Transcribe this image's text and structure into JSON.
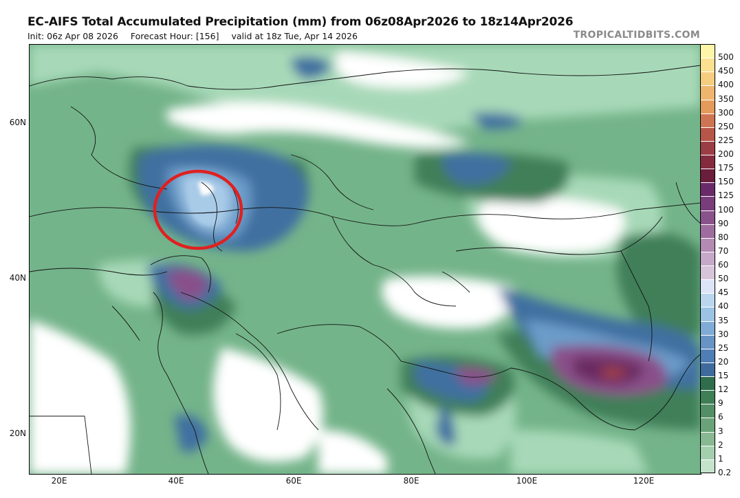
{
  "header": {
    "title": "EC-AIFS Total Accumulated Precipitation (mm) from 06z08Apr2026 to 18z14Apr2026",
    "init": "Init: 06z Apr 08 2026",
    "forecast_hour": "Forecast Hour: [156]",
    "valid": "valid at 18z Tue, Apr 14 2026",
    "brand": "TROPICALTIDBITS.COM"
  },
  "axes": {
    "lat_labels": [
      "60N",
      "40N",
      "20N"
    ],
    "lon_labels": [
      "20E",
      "40E",
      "60E",
      "80E",
      "100E",
      "120E"
    ]
  },
  "colorbar": {
    "levels": [
      "500",
      "450",
      "400",
      "350",
      "300",
      "250",
      "225",
      "200",
      "175",
      "150",
      "125",
      "100",
      "90",
      "80",
      "70",
      "60",
      "50",
      "45",
      "40",
      "35",
      "30",
      "25",
      "20",
      "15",
      "12",
      "9",
      "6",
      "3",
      "2",
      "1",
      "0.2"
    ],
    "colors": [
      "#fff5a8",
      "#fbe08f",
      "#f6cd7f",
      "#efb56d",
      "#e49a5b",
      "#cf7453",
      "#b65649",
      "#9b3d45",
      "#852b3f",
      "#6b1d3c",
      "#6a2a6a",
      "#7a3d7b",
      "#8a528b",
      "#9e6c9e",
      "#b38ab4",
      "#c6a8c9",
      "#d7c3da",
      "#dbe5f7",
      "#b9d6ee",
      "#9cc3e4",
      "#80abd6",
      "#6793c5",
      "#4f7db5",
      "#3f6a9d",
      "#2f6e4c",
      "#3f7f56",
      "#538f66",
      "#6aa37a",
      "#88b992",
      "#a4cfae",
      "#c4e3cb"
    ]
  },
  "map": {
    "colors": {
      "land_low": "#cfeedd",
      "green_light": "#a7d9b8",
      "green_mid": "#74b48a",
      "green_dark": "#3f7f58",
      "green_deep": "#2f6a45",
      "blue_dark": "#3f6fa0",
      "blue_mid": "#6c9cc9",
      "blue_light": "#a8cbe8",
      "purple": "#8a4f8a",
      "purple_dark": "#6b2a62",
      "red_core": "#a04048",
      "white": "#ffffff",
      "annotation": "#e02020"
    },
    "annotation": "red-circle"
  }
}
